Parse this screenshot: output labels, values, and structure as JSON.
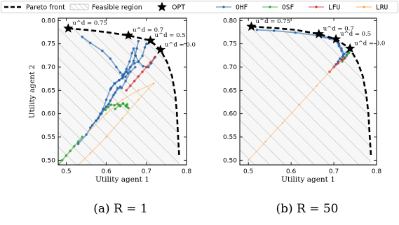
{
  "legend": {
    "items": [
      {
        "label": "Pareto front",
        "kind": "dashed",
        "color": "#000000"
      },
      {
        "label": "Feasible region",
        "kind": "patch",
        "color": "#bbbbbb"
      },
      {
        "label": "OPT",
        "kind": "star",
        "color": "#000000"
      },
      {
        "label": "OHF",
        "kind": "line",
        "color": "#1f5fa8"
      },
      {
        "label": "OSF",
        "kind": "line",
        "color": "#2ca02c"
      },
      {
        "label": "LFU",
        "kind": "line",
        "color": "#d62728"
      },
      {
        "label": "LRU",
        "kind": "line",
        "color": "#ff9f40"
      }
    ]
  },
  "chart_data": [
    {
      "type": "line",
      "caption": "(a) R = 1",
      "xlabel": "Utility agent 1",
      "ylabel": "Utility agent 2",
      "xlim": [
        0.48,
        0.8
      ],
      "ylim": [
        0.49,
        0.805
      ],
      "xticks": [
        "0.5",
        "0.6",
        "0.7",
        "0.8"
      ],
      "yticks": [
        "0.50",
        "0.55",
        "0.60",
        "0.65",
        "0.70",
        "0.75",
        "0.80"
      ],
      "pareto_front": {
        "x": [
          0.505,
          0.55,
          0.6,
          0.655,
          0.71,
          0.735,
          0.752,
          0.764,
          0.772,
          0.776,
          0.779,
          0.782
        ],
        "y": [
          0.783,
          0.78,
          0.775,
          0.768,
          0.757,
          0.737,
          0.71,
          0.68,
          0.64,
          0.6,
          0.55,
          0.505
        ]
      },
      "opt_points": [
        {
          "x": 0.505,
          "y": 0.783,
          "label": "u^d = 0.75"
        },
        {
          "x": 0.655,
          "y": 0.768,
          "label": "u^d = 0.7"
        },
        {
          "x": 0.71,
          "y": 0.757,
          "label": "u^d = 0.5"
        },
        {
          "x": 0.735,
          "y": 0.737,
          "label": "u^d = 0.0"
        }
      ],
      "series": [
        {
          "name": "OHF",
          "color": "#1f5fa8",
          "lines": [
            {
              "x": [
                0.54,
                0.56,
                0.59,
                0.61,
                0.625,
                0.635,
                0.643,
                0.65,
                0.658,
                0.664,
                0.668,
                0.673,
                0.68,
                0.692,
                0.705,
                0.712,
                0.722
              ],
              "y": [
                0.765,
                0.752,
                0.735,
                0.718,
                0.7,
                0.688,
                0.684,
                0.696,
                0.712,
                0.73,
                0.74,
                0.724,
                0.712,
                0.702,
                0.7,
                0.708,
                0.722
              ]
            },
            {
              "x": [
                0.612,
                0.622,
                0.632,
                0.64,
                0.648,
                0.654,
                0.66,
                0.668,
                0.672,
                0.676,
                0.68
              ],
              "y": [
                0.655,
                0.665,
                0.672,
                0.676,
                0.679,
                0.687,
                0.7,
                0.713,
                0.725,
                0.74,
                0.756
              ]
            },
            {
              "x": [
                0.64,
                0.65,
                0.66,
                0.67,
                0.68,
                0.69,
                0.696,
                0.7
              ],
              "y": [
                0.682,
                0.69,
                0.7,
                0.708,
                0.712,
                0.724,
                0.742,
                0.75
              ]
            },
            {
              "x": [
                0.53,
                0.55,
                0.565,
                0.58,
                0.594,
                0.606,
                0.618,
                0.628,
                0.638,
                0.648,
                0.66,
                0.672
              ],
              "y": [
                0.535,
                0.555,
                0.575,
                0.59,
                0.61,
                0.62,
                0.64,
                0.655,
                0.655,
                0.67,
                0.69,
                0.7
              ]
            },
            {
              "x": [
                0.575,
                0.585,
                0.592,
                0.6,
                0.61,
                0.62,
                0.632,
                0.642,
                0.65
              ],
              "y": [
                0.585,
                0.6,
                0.61,
                0.63,
                0.652,
                0.665,
                0.672,
                0.68,
                0.69
              ]
            },
            {
              "x": [
                0.56,
                0.574,
                0.588,
                0.6,
                0.61,
                0.622,
                0.635
              ],
              "y": [
                0.57,
                0.585,
                0.6,
                0.615,
                0.628,
                0.645,
                0.658
              ]
            }
          ]
        },
        {
          "name": "OSF",
          "color": "#2ca02c",
          "lines": [
            {
              "x": [
                0.48,
                0.49,
                0.5,
                0.51,
                0.52,
                0.53,
                0.54
              ],
              "y": [
                0.49,
                0.5,
                0.51,
                0.52,
                0.53,
                0.54,
                0.55
              ]
            },
            {
              "x": [
                0.598,
                0.605,
                0.612,
                0.62,
                0.628,
                0.635,
                0.642,
                0.648,
                0.652,
                0.655,
                0.65,
                0.642,
                0.632,
                0.622
              ],
              "y": [
                0.608,
                0.614,
                0.619,
                0.618,
                0.621,
                0.616,
                0.622,
                0.617,
                0.62,
                0.612,
                0.615,
                0.622,
                0.618,
                0.61
              ]
            }
          ]
        },
        {
          "name": "LFU",
          "color": "#d62728",
          "lines": [
            {
              "x": [
                0.65,
                0.66,
                0.67,
                0.68,
                0.69,
                0.7,
                0.71,
                0.72
              ],
              "y": [
                0.65,
                0.66,
                0.67,
                0.68,
                0.69,
                0.7,
                0.71,
                0.72
              ]
            }
          ]
        },
        {
          "name": "LRU",
          "color": "#ff9f40",
          "lines": [
            {
              "x": [
                0.53,
                0.56,
                0.6,
                0.64,
                0.68,
                0.718
              ],
              "y": [
                0.49,
                0.515,
                0.55,
                0.59,
                0.63,
                0.665
              ]
            },
            {
              "x": [
                0.56,
                0.6,
                0.64,
                0.68,
                0.718
              ],
              "y": [
                0.565,
                0.6,
                0.63,
                0.65,
                0.665
              ]
            }
          ]
        }
      ]
    },
    {
      "type": "line",
      "caption": "(b) R = 50",
      "xlabel": "Utility agent 1",
      "ylabel": "",
      "xlim": [
        0.48,
        0.8
      ],
      "ylim": [
        0.49,
        0.805
      ],
      "xticks": [
        "0.5",
        "0.6",
        "0.7",
        "0.8"
      ],
      "yticks": [
        "0.50",
        "0.55",
        "0.60",
        "0.65",
        "0.70",
        "0.75",
        "0.80"
      ],
      "pareto_front": {
        "x": [
          0.507,
          0.56,
          0.61,
          0.665,
          0.705,
          0.738,
          0.756,
          0.768,
          0.776,
          0.781,
          0.784,
          0.787
        ],
        "y": [
          0.787,
          0.784,
          0.78,
          0.771,
          0.76,
          0.74,
          0.71,
          0.68,
          0.64,
          0.6,
          0.55,
          0.508
        ]
      },
      "opt_points": [
        {
          "x": 0.507,
          "y": 0.787,
          "label": "u^d = 0.75"
        },
        {
          "x": 0.665,
          "y": 0.771,
          "label": "u^d = 0.7"
        },
        {
          "x": 0.705,
          "y": 0.76,
          "label": "u^d = 0.5"
        },
        {
          "x": 0.738,
          "y": 0.74,
          "label": "u^d = 0.0"
        }
      ],
      "series": [
        {
          "name": "OHF",
          "color": "#1f5fa8",
          "lines": [
            {
              "x": [
                0.52,
                0.56,
                0.61,
                0.66,
                0.69,
                0.705,
                0.712,
                0.718,
                0.724,
                0.73,
                0.736
              ],
              "y": [
                0.78,
                0.778,
                0.774,
                0.768,
                0.763,
                0.758,
                0.75,
                0.74,
                0.728,
                0.732,
                0.738
              ]
            },
            {
              "x": [
                0.67,
                0.69,
                0.705,
                0.712,
                0.718,
                0.722,
                0.726,
                0.73,
                0.734
              ],
              "y": [
                0.765,
                0.761,
                0.756,
                0.745,
                0.735,
                0.725,
                0.72,
                0.726,
                0.733
              ]
            },
            {
              "x": [
                0.7,
                0.705,
                0.71,
                0.714,
                0.718,
                0.72
              ],
              "y": [
                0.7,
                0.706,
                0.712,
                0.718,
                0.716,
                0.722
              ]
            }
          ]
        },
        {
          "name": "OSF",
          "color": "#2ca02c",
          "lines": [
            {
              "x": [
                0.72,
                0.725,
                0.73,
                0.735,
                0.74
              ],
              "y": [
                0.712,
                0.718,
                0.724,
                0.73,
                0.736
              ]
            }
          ]
        },
        {
          "name": "LFU",
          "color": "#d62728",
          "lines": [
            {
              "x": [
                0.69,
                0.7,
                0.71,
                0.72,
                0.725
              ],
              "y": [
                0.69,
                0.7,
                0.708,
                0.716,
                0.72
              ]
            }
          ]
        },
        {
          "name": "LRU",
          "color": "#ff9f40",
          "lines": [
            {
              "x": [
                0.5,
                0.54,
                0.58,
                0.62,
                0.66,
                0.7
              ],
              "y": [
                0.5,
                0.54,
                0.58,
                0.62,
                0.66,
                0.7
              ]
            }
          ]
        }
      ]
    }
  ]
}
